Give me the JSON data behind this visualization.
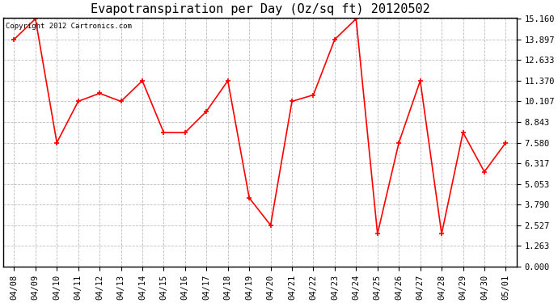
{
  "title": "Evapotranspiration per Day (Oz/sq ft) 20120502",
  "copyright": "Copyright 2012 Cartronics.com",
  "dates": [
    "04/08",
    "04/09",
    "04/10",
    "04/11",
    "04/12",
    "04/13",
    "04/14",
    "04/15",
    "04/16",
    "04/17",
    "04/18",
    "04/19",
    "04/20",
    "04/21",
    "04/22",
    "04/23",
    "04/24",
    "04/25",
    "04/26",
    "04/27",
    "04/28",
    "04/29",
    "04/30",
    "05/01"
  ],
  "values": [
    13.9,
    15.16,
    7.58,
    10.107,
    10.6,
    10.107,
    11.37,
    8.2,
    8.2,
    9.5,
    11.37,
    4.2,
    2.527,
    10.107,
    10.5,
    13.897,
    15.16,
    2.0,
    7.58,
    11.37,
    2.0,
    8.2,
    5.8,
    7.58
  ],
  "yticks": [
    0.0,
    1.263,
    2.527,
    3.79,
    5.053,
    6.317,
    7.58,
    8.843,
    10.107,
    11.37,
    12.633,
    13.897,
    15.16
  ],
  "ymin": 0.0,
  "ymax": 15.16,
  "line_color": "red",
  "marker": "+",
  "marker_size": 5,
  "background_color": "white",
  "grid_color": "#bbbbbb",
  "title_fontsize": 11,
  "tick_fontsize": 7.5,
  "copyright_fontsize": 6.5
}
